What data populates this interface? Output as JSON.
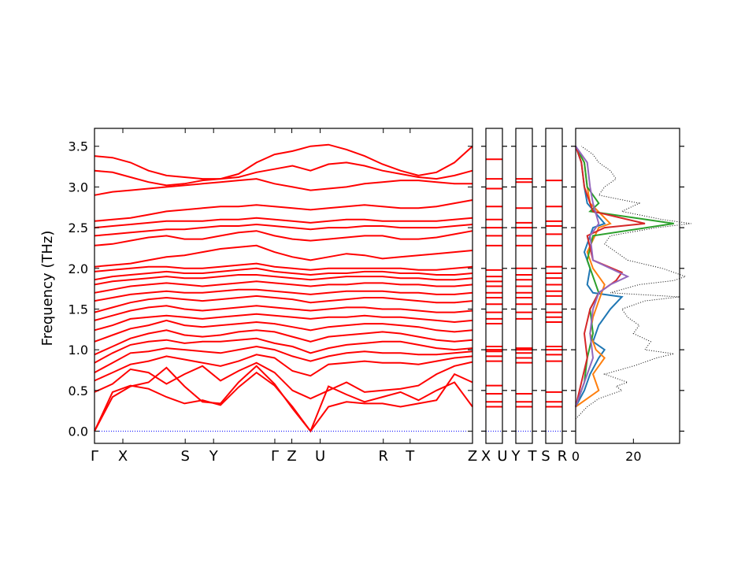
{
  "chart_data": {
    "type": "line",
    "ylabel": "Frequency (THz)",
    "ylim": [
      -0.15,
      3.72
    ],
    "yticks": [
      "0.0",
      "0.5",
      "1.0",
      "1.5",
      "2.0",
      "2.5",
      "3.0",
      "3.5"
    ],
    "ytick_values": [
      0.0,
      0.5,
      1.0,
      1.5,
      2.0,
      2.5,
      3.0,
      3.5
    ],
    "band_color": "#ff0000",
    "zero_line_color": "#0000ff",
    "dos_total_color": "#000000",
    "panels": [
      {
        "name": "main-band-panel",
        "segments": [
          {
            "start": "Γ",
            "end": "X"
          },
          {
            "start": "X",
            "end": "S"
          },
          {
            "start": "S",
            "end": "Y"
          },
          {
            "start": "Y",
            "end": "Γ"
          },
          {
            "start": "Γ",
            "end": "Z"
          },
          {
            "start": "Z",
            "end": "U"
          },
          {
            "start": "U",
            "end": "R"
          },
          {
            "start": "R",
            "end": "T"
          },
          {
            "start": "T",
            "end": "Z"
          }
        ],
        "xticks": [
          "Γ",
          "X",
          "S",
          "Y",
          "Γ",
          "Z",
          "U",
          "R",
          "T",
          "Z"
        ],
        "xtick_positions": [
          0,
          0.075,
          0.24,
          0.315,
          0.477,
          0.522,
          0.597,
          0.764,
          0.835,
          1.0
        ]
      },
      {
        "name": "xu-panel",
        "xticks": [
          "X",
          "U"
        ]
      },
      {
        "name": "yt-panel",
        "xticks": [
          "Y",
          "T"
        ]
      },
      {
        "name": "sr-panel",
        "xticks": [
          "S",
          "R"
        ]
      }
    ],
    "main_bands": [
      [
        0.0,
        0.48,
        0.56,
        0.52,
        0.42,
        0.34,
        0.38,
        0.32,
        0.54,
        0.72,
        0.56,
        0.3,
        0.0,
        0.55,
        0.45,
        0.36,
        0.42,
        0.48,
        0.38,
        0.5,
        0.6,
        0.3
      ],
      [
        0.0,
        0.42,
        0.55,
        0.6,
        0.78,
        0.55,
        0.36,
        0.34,
        0.6,
        0.8,
        0.58,
        0.28,
        0.0,
        0.3,
        0.36,
        0.34,
        0.34,
        0.3,
        0.34,
        0.38,
        0.7,
        0.6
      ],
      [
        0.48,
        0.58,
        0.76,
        0.72,
        0.58,
        0.7,
        0.8,
        0.62,
        0.74,
        0.84,
        0.72,
        0.5,
        0.4,
        0.5,
        0.6,
        0.48,
        0.5,
        0.52,
        0.56,
        0.7,
        0.8,
        0.85
      ],
      [
        0.62,
        0.72,
        0.82,
        0.86,
        0.92,
        0.88,
        0.84,
        0.8,
        0.86,
        0.94,
        0.9,
        0.74,
        0.68,
        0.82,
        0.84,
        0.86,
        0.84,
        0.84,
        0.82,
        0.86,
        0.9,
        0.92
      ],
      [
        0.72,
        0.84,
        0.96,
        0.98,
        1.02,
        1.0,
        0.98,
        0.96,
        1.0,
        1.04,
        1.0,
        0.92,
        0.86,
        0.92,
        0.96,
        0.98,
        0.96,
        0.96,
        0.94,
        0.94,
        0.96,
        0.98
      ],
      [
        0.84,
        0.96,
        1.06,
        1.1,
        1.12,
        1.08,
        1.1,
        1.1,
        1.12,
        1.14,
        1.08,
        1.04,
        0.96,
        1.02,
        1.06,
        1.08,
        1.1,
        1.1,
        1.06,
        1.02,
        1.0,
        1.02
      ],
      [
        0.94,
        1.04,
        1.14,
        1.2,
        1.24,
        1.18,
        1.16,
        1.18,
        1.22,
        1.24,
        1.22,
        1.16,
        1.1,
        1.16,
        1.18,
        1.2,
        1.22,
        1.2,
        1.16,
        1.12,
        1.1,
        1.12
      ],
      [
        1.1,
        1.18,
        1.26,
        1.3,
        1.36,
        1.3,
        1.28,
        1.3,
        1.32,
        1.34,
        1.32,
        1.28,
        1.24,
        1.28,
        1.3,
        1.32,
        1.32,
        1.3,
        1.28,
        1.24,
        1.22,
        1.24
      ],
      [
        1.24,
        1.3,
        1.38,
        1.4,
        1.42,
        1.4,
        1.38,
        1.4,
        1.42,
        1.44,
        1.42,
        1.4,
        1.38,
        1.4,
        1.4,
        1.42,
        1.4,
        1.4,
        1.38,
        1.36,
        1.34,
        1.36
      ],
      [
        1.36,
        1.42,
        1.48,
        1.52,
        1.54,
        1.5,
        1.48,
        1.5,
        1.52,
        1.54,
        1.52,
        1.5,
        1.48,
        1.5,
        1.52,
        1.52,
        1.5,
        1.5,
        1.48,
        1.46,
        1.46,
        1.48
      ],
      [
        1.46,
        1.52,
        1.58,
        1.62,
        1.64,
        1.62,
        1.6,
        1.62,
        1.64,
        1.66,
        1.64,
        1.62,
        1.58,
        1.6,
        1.62,
        1.64,
        1.64,
        1.62,
        1.6,
        1.58,
        1.58,
        1.6
      ],
      [
        1.6,
        1.64,
        1.68,
        1.7,
        1.72,
        1.7,
        1.7,
        1.72,
        1.74,
        1.74,
        1.72,
        1.7,
        1.68,
        1.7,
        1.72,
        1.72,
        1.72,
        1.7,
        1.7,
        1.68,
        1.68,
        1.7
      ],
      [
        1.7,
        1.74,
        1.78,
        1.8,
        1.82,
        1.8,
        1.78,
        1.8,
        1.82,
        1.84,
        1.82,
        1.8,
        1.78,
        1.8,
        1.8,
        1.82,
        1.82,
        1.8,
        1.8,
        1.78,
        1.78,
        1.8
      ],
      [
        1.8,
        1.84,
        1.86,
        1.88,
        1.9,
        1.88,
        1.88,
        1.9,
        1.92,
        1.92,
        1.9,
        1.88,
        1.86,
        1.88,
        1.9,
        1.9,
        1.9,
        1.88,
        1.88,
        1.86,
        1.86,
        1.88
      ],
      [
        1.86,
        1.9,
        1.92,
        1.94,
        1.96,
        1.94,
        1.94,
        1.96,
        1.98,
        2.0,
        1.96,
        1.94,
        1.92,
        1.94,
        1.94,
        1.96,
        1.96,
        1.94,
        1.94,
        1.92,
        1.92,
        1.94
      ],
      [
        1.96,
        1.98,
        2.0,
        2.02,
        2.02,
        2.0,
        2.0,
        2.02,
        2.04,
        2.06,
        2.02,
        2.0,
        1.98,
        2.0,
        2.0,
        2.0,
        2.0,
        2.0,
        1.98,
        1.98,
        2.0,
        2.02
      ],
      [
        2.02,
        2.04,
        2.06,
        2.1,
        2.14,
        2.16,
        2.2,
        2.24,
        2.26,
        2.28,
        2.2,
        2.14,
        2.1,
        2.14,
        2.18,
        2.16,
        2.12,
        2.14,
        2.16,
        2.18,
        2.2,
        2.22
      ],
      [
        2.28,
        2.3,
        2.34,
        2.38,
        2.4,
        2.36,
        2.36,
        2.4,
        2.44,
        2.46,
        2.4,
        2.36,
        2.34,
        2.36,
        2.38,
        2.4,
        2.4,
        2.36,
        2.36,
        2.38,
        2.42,
        2.46
      ],
      [
        2.4,
        2.42,
        2.44,
        2.46,
        2.48,
        2.48,
        2.5,
        2.52,
        2.52,
        2.54,
        2.52,
        2.5,
        2.48,
        2.5,
        2.5,
        2.52,
        2.52,
        2.5,
        2.5,
        2.5,
        2.52,
        2.54
      ],
      [
        2.5,
        2.52,
        2.54,
        2.56,
        2.58,
        2.58,
        2.58,
        2.6,
        2.6,
        2.62,
        2.6,
        2.58,
        2.56,
        2.58,
        2.6,
        2.6,
        2.58,
        2.58,
        2.58,
        2.58,
        2.6,
        2.62
      ],
      [
        2.58,
        2.6,
        2.62,
        2.66,
        2.7,
        2.72,
        2.74,
        2.76,
        2.76,
        2.78,
        2.76,
        2.74,
        2.72,
        2.74,
        2.76,
        2.78,
        2.76,
        2.74,
        2.74,
        2.76,
        2.8,
        2.84
      ],
      [
        2.9,
        2.94,
        2.96,
        2.98,
        3.0,
        3.02,
        3.04,
        3.06,
        3.08,
        3.1,
        3.04,
        3.0,
        2.96,
        2.98,
        3.0,
        3.04,
        3.06,
        3.08,
        3.08,
        3.06,
        3.04,
        3.04
      ],
      [
        3.2,
        3.18,
        3.12,
        3.06,
        3.02,
        3.04,
        3.08,
        3.1,
        3.12,
        3.18,
        3.22,
        3.26,
        3.2,
        3.28,
        3.3,
        3.26,
        3.2,
        3.16,
        3.12,
        3.1,
        3.14,
        3.2
      ],
      [
        3.38,
        3.36,
        3.3,
        3.2,
        3.14,
        3.12,
        3.1,
        3.1,
        3.16,
        3.3,
        3.4,
        3.44,
        3.5,
        3.52,
        3.46,
        3.38,
        3.28,
        3.2,
        3.14,
        3.18,
        3.3,
        3.5
      ]
    ],
    "small_panel_levels": [
      [
        0.3,
        0.36,
        0.46,
        0.56,
        0.86,
        0.92,
        0.98,
        1.0,
        1.04,
        1.32,
        1.38,
        1.46,
        1.56,
        1.64,
        1.7,
        1.78,
        1.84,
        1.9,
        1.98,
        2.28,
        2.4,
        2.5,
        2.6,
        2.76,
        2.98,
        3.1,
        3.34
      ],
      [
        0.3,
        0.36,
        0.46,
        0.84,
        0.9,
        0.96,
        1.0,
        1.02,
        1.38,
        1.46,
        1.56,
        1.64,
        1.7,
        1.78,
        1.86,
        1.92,
        2.0,
        2.28,
        2.4,
        2.5,
        2.56,
        2.74,
        3.06,
        3.1
      ],
      [
        0.3,
        0.36,
        0.48,
        0.86,
        0.94,
        1.0,
        1.04,
        1.34,
        1.4,
        1.46,
        1.56,
        1.66,
        1.72,
        1.8,
        1.88,
        1.94,
        2.02,
        2.28,
        2.42,
        2.52,
        2.58,
        2.76,
        3.08
      ]
    ],
    "dos": {
      "xticks": [
        "0",
        "20"
      ],
      "xtick_values": [
        0,
        20
      ],
      "xlim": [
        0,
        36
      ],
      "series": [
        {
          "color": "#000000",
          "freq": [
            0.15,
            0.3,
            0.4,
            0.5,
            0.55,
            0.6,
            0.7,
            0.8,
            0.9,
            0.95,
            1.0,
            1.1,
            1.2,
            1.3,
            1.4,
            1.5,
            1.6,
            1.65,
            1.7,
            1.8,
            1.85,
            1.9,
            2.0,
            2.1,
            2.2,
            2.3,
            2.4,
            2.5,
            2.55,
            2.6,
            2.7,
            2.8,
            2.9,
            3.0,
            3.1,
            3.2,
            3.3,
            3.4,
            3.5
          ],
          "dos": [
            0,
            4,
            8,
            16,
            14,
            18,
            10,
            20,
            28,
            34,
            24,
            26,
            20,
            22,
            18,
            16,
            24,
            36,
            12,
            22,
            34,
            38,
            30,
            18,
            14,
            10,
            12,
            28,
            40,
            30,
            16,
            22,
            8,
            10,
            14,
            12,
            8,
            6,
            2
          ]
        },
        {
          "color": "#1f77b4",
          "freq": [
            0.3,
            0.5,
            0.7,
            0.9,
            1.0,
            1.1,
            1.3,
            1.5,
            1.65,
            1.7,
            1.8,
            2.0,
            2.2,
            2.5,
            2.55,
            2.8,
            3.0,
            3.3,
            3.5
          ],
          "dos": [
            0,
            3,
            5,
            8,
            10,
            6,
            8,
            12,
            16,
            6,
            4,
            5,
            3,
            6,
            10,
            4,
            3,
            2,
            0
          ]
        },
        {
          "color": "#ff7f0e",
          "freq": [
            0.3,
            0.5,
            0.7,
            0.9,
            1.0,
            1.2,
            1.4,
            1.6,
            1.8,
            2.0,
            2.2,
            2.5,
            2.55,
            2.8,
            3.0,
            3.3,
            3.5
          ],
          "dos": [
            0,
            8,
            6,
            10,
            7,
            5,
            6,
            8,
            10,
            6,
            4,
            8,
            12,
            5,
            4,
            3,
            0
          ]
        },
        {
          "color": "#2ca02c",
          "freq": [
            0.3,
            0.6,
            0.9,
            1.2,
            1.5,
            1.7,
            1.9,
            2.1,
            2.4,
            2.55,
            2.7,
            2.8,
            3.0,
            3.3,
            3.5
          ],
          "dos": [
            0,
            3,
            4,
            6,
            5,
            8,
            6,
            4,
            6,
            34,
            5,
            8,
            4,
            3,
            0
          ]
        },
        {
          "color": "#d62728",
          "freq": [
            0.3,
            0.6,
            0.9,
            1.2,
            1.5,
            1.7,
            1.85,
            1.95,
            2.1,
            2.4,
            2.5,
            2.55,
            2.7,
            3.0,
            3.3,
            3.5
          ],
          "dos": [
            0,
            2,
            4,
            3,
            5,
            8,
            14,
            16,
            6,
            4,
            10,
            24,
            6,
            3,
            2,
            0
          ]
        },
        {
          "color": "#9467bd",
          "freq": [
            0.3,
            0.6,
            0.9,
            1.2,
            1.5,
            1.7,
            1.8,
            1.9,
            2.1,
            2.4,
            2.55,
            2.8,
            3.0,
            3.3,
            3.5
          ],
          "dos": [
            0,
            3,
            6,
            5,
            6,
            8,
            12,
            18,
            6,
            5,
            8,
            6,
            5,
            4,
            0
          ]
        }
      ]
    }
  }
}
